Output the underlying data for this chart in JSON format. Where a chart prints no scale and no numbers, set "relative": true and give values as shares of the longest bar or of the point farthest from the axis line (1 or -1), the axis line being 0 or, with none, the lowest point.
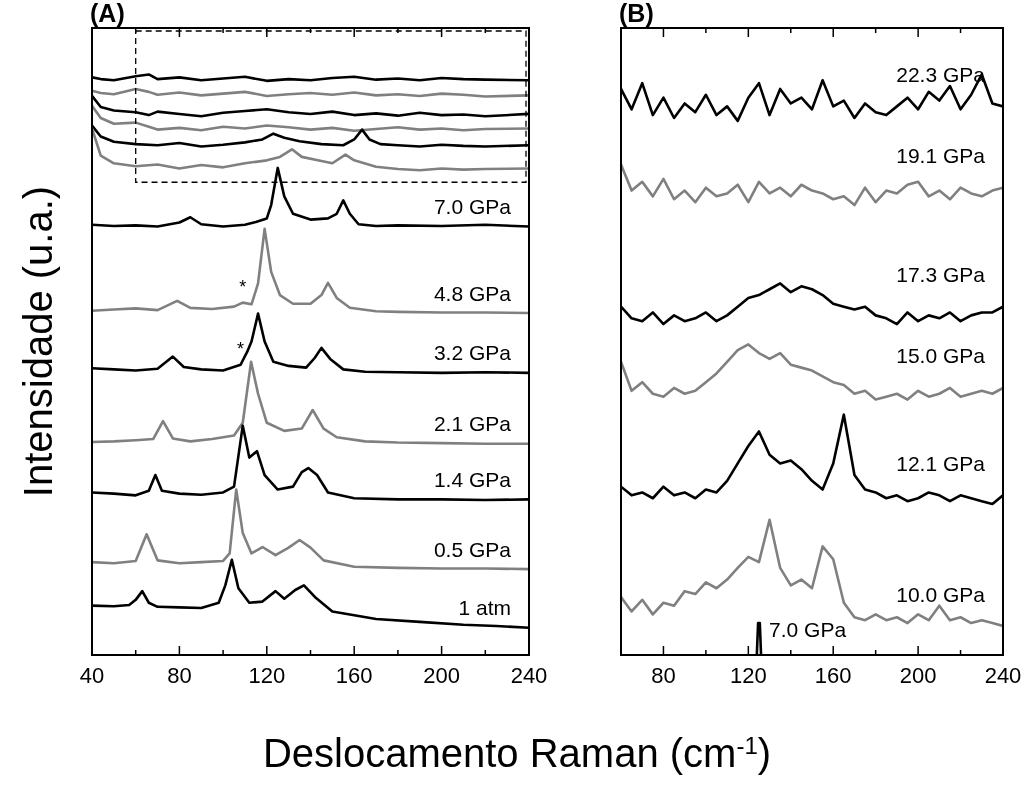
{
  "chart_data": [
    {
      "type": "line",
      "title": "(A)",
      "xlabel": "Deslocamento Raman   (cm$^{-1}$)",
      "ylabel": "Intensidade (u.a.)",
      "relative": true,
      "xlim": [
        40,
        240
      ],
      "xticks": [
        40,
        {
          "value": 60,
          "label": null
        },
        80,
        {
          "value": 100,
          "label": null
        },
        120,
        {
          "value": 140,
          "label": null
        },
        160,
        {
          "value": 180,
          "label": null
        },
        200,
        {
          "value": 220,
          "label": null
        },
        240
      ],
      "series": [
        {
          "color": "#000000",
          "x": [
            40,
            44,
            50,
            60,
            66,
            70,
            80,
            90,
            100,
            110,
            120,
            130,
            140,
            150,
            160,
            170,
            180,
            190,
            200,
            210,
            220,
            240
          ],
          "values": [
            0.995,
            0.992,
            0.99,
            0.997,
            1.0,
            0.992,
            0.995,
            0.99,
            0.993,
            0.996,
            0.989,
            0.992,
            0.99,
            0.994,
            0.996,
            0.991,
            0.993,
            0.99,
            0.994,
            0.992,
            0.991,
            0.99
          ]
        },
        {
          "color": "#808080",
          "x": [
            40,
            44,
            50,
            60,
            66,
            70,
            80,
            90,
            100,
            110,
            120,
            130,
            140,
            150,
            160,
            170,
            180,
            190,
            200,
            210,
            220,
            240
          ],
          "values": [
            0.972,
            0.968,
            0.966,
            0.975,
            0.97,
            0.965,
            0.969,
            0.964,
            0.967,
            0.97,
            0.963,
            0.966,
            0.968,
            0.965,
            0.969,
            0.964,
            0.966,
            0.963,
            0.967,
            0.965,
            0.962,
            0.964
          ]
        },
        {
          "color": "#000000",
          "x": [
            40,
            44,
            50,
            60,
            66,
            70,
            80,
            90,
            100,
            110,
            120,
            130,
            140,
            150,
            160,
            170,
            180,
            190,
            200,
            210,
            220,
            240
          ],
          "values": [
            0.963,
            0.944,
            0.938,
            0.935,
            0.93,
            0.936,
            0.932,
            0.928,
            0.934,
            0.937,
            0.94,
            0.935,
            0.932,
            0.936,
            0.93,
            0.933,
            0.929,
            0.934,
            0.93,
            0.931,
            0.928,
            0.932
          ]
        },
        {
          "color": "#808080",
          "x": [
            40,
            44,
            50,
            60,
            66,
            70,
            80,
            90,
            100,
            110,
            120,
            130,
            140,
            150,
            160,
            170,
            180,
            190,
            200,
            210,
            220,
            240
          ],
          "values": [
            0.946,
            0.925,
            0.915,
            0.917,
            0.91,
            0.905,
            0.908,
            0.904,
            0.91,
            0.907,
            0.912,
            0.909,
            0.905,
            0.908,
            0.903,
            0.906,
            0.909,
            0.905,
            0.907,
            0.904,
            0.906,
            0.907
          ]
        },
        {
          "color": "#000000",
          "x": [
            40,
            44,
            50,
            60,
            70,
            80,
            90,
            100,
            110,
            118,
            123,
            128,
            135,
            145,
            155,
            160,
            163.6,
            167,
            172,
            180,
            190,
            200,
            210,
            220,
            240
          ],
          "values": [
            0.912,
            0.893,
            0.884,
            0.88,
            0.878,
            0.882,
            0.876,
            0.879,
            0.883,
            0.888,
            0.898,
            0.891,
            0.885,
            0.88,
            0.878,
            0.888,
            0.905,
            0.888,
            0.88,
            0.878,
            0.876,
            0.879,
            0.877,
            0.876,
            0.878
          ]
        },
        {
          "color": "#808080",
          "x": [
            40,
            44,
            50,
            60,
            70,
            80,
            90,
            100,
            110,
            120,
            126,
            131.5,
            136,
            145,
            150,
            156,
            160,
            170,
            180,
            190,
            200,
            210,
            220,
            240
          ],
          "values": [
            0.907,
            0.86,
            0.847,
            0.842,
            0.845,
            0.838,
            0.844,
            0.84,
            0.847,
            0.852,
            0.858,
            0.871,
            0.858,
            0.851,
            0.847,
            0.862,
            0.852,
            0.841,
            0.837,
            0.835,
            0.838,
            0.836,
            0.837,
            0.838
          ]
        },
        {
          "name": "7.0 GPa",
          "color": "#000000",
          "x": [
            40,
            50,
            60,
            70,
            80,
            85,
            90,
            100,
            110,
            115,
            120,
            122,
            125,
            128,
            132,
            140,
            148,
            152,
            155,
            158,
            162,
            170,
            180,
            200,
            220,
            240
          ],
          "values": [
            0.741,
            0.739,
            0.74,
            0.738,
            0.745,
            0.754,
            0.742,
            0.738,
            0.741,
            0.746,
            0.752,
            0.775,
            0.839,
            0.79,
            0.76,
            0.75,
            0.752,
            0.76,
            0.783,
            0.76,
            0.742,
            0.739,
            0.74,
            0.739,
            0.741,
            0.738
          ]
        },
        {
          "name": "4.8 GPa",
          "color": "#808080",
          "x": [
            40,
            50,
            60,
            70,
            79,
            85,
            95,
            105,
            109,
            113,
            116,
            119,
            122,
            126,
            132,
            140,
            145,
            148,
            152,
            158,
            170,
            180,
            200,
            220,
            240
          ],
          "values": [
            0.593,
            0.595,
            0.597,
            0.594,
            0.61,
            0.598,
            0.596,
            0.6,
            0.607,
            0.604,
            0.64,
            0.734,
            0.66,
            0.62,
            0.605,
            0.605,
            0.62,
            0.641,
            0.615,
            0.598,
            0.592,
            0.591,
            0.59,
            0.59,
            0.589
          ]
        },
        {
          "name": "3.2 GPa",
          "color": "#000000",
          "x": [
            40,
            50,
            60,
            70,
            77,
            82,
            90,
            100,
            108,
            111,
            113,
            116,
            119,
            123,
            130,
            138,
            142,
            145,
            149,
            155,
            165,
            180,
            200,
            220,
            240
          ],
          "values": [
            0.494,
            0.492,
            0.49,
            0.493,
            0.514,
            0.496,
            0.492,
            0.49,
            0.5,
            0.522,
            0.54,
            0.588,
            0.54,
            0.505,
            0.498,
            0.495,
            0.512,
            0.529,
            0.51,
            0.492,
            0.488,
            0.487,
            0.486,
            0.487,
            0.486
          ]
        },
        {
          "name": "2.1 GPa",
          "color": "#808080",
          "x": [
            40,
            50,
            60,
            68,
            72.5,
            77,
            85,
            95,
            105,
            109,
            112.8,
            116,
            120,
            128,
            136,
            141,
            146,
            152,
            165,
            180,
            200,
            220,
            240
          ],
          "values": [
            0.367,
            0.368,
            0.37,
            0.372,
            0.403,
            0.373,
            0.368,
            0.372,
            0.378,
            0.4,
            0.505,
            0.45,
            0.4,
            0.386,
            0.39,
            0.422,
            0.39,
            0.375,
            0.368,
            0.366,
            0.365,
            0.364,
            0.364
          ]
        },
        {
          "name": "1.4 GPa",
          "color": "#000000",
          "x": [
            40,
            50,
            60,
            66,
            69,
            72,
            80,
            90,
            100,
            105,
            109,
            112,
            115.5,
            119,
            125,
            132,
            136,
            139,
            143,
            148,
            160,
            180,
            200,
            220,
            240
          ],
          "values": [
            0.28,
            0.278,
            0.275,
            0.283,
            0.31,
            0.283,
            0.278,
            0.276,
            0.28,
            0.29,
            0.395,
            0.34,
            0.351,
            0.31,
            0.285,
            0.29,
            0.315,
            0.322,
            0.31,
            0.28,
            0.27,
            0.268,
            0.268,
            0.267,
            0.268
          ]
        },
        {
          "name": "0.5 GPa",
          "color": "#808080",
          "x": [
            40,
            50,
            60,
            65,
            70,
            80,
            90,
            100,
            103,
            106,
            109,
            113,
            118,
            124,
            130,
            135,
            140,
            146,
            160,
            180,
            200,
            220,
            240
          ],
          "values": [
            0.16,
            0.158,
            0.162,
            0.208,
            0.163,
            0.158,
            0.16,
            0.162,
            0.175,
            0.285,
            0.21,
            0.175,
            0.186,
            0.172,
            0.185,
            0.198,
            0.185,
            0.163,
            0.152,
            0.15,
            0.149,
            0.149,
            0.148
          ]
        },
        {
          "name": "1 atm",
          "color": "#000000",
          "x": [
            40,
            50,
            57,
            60,
            63,
            66,
            70,
            80,
            90,
            98,
            101,
            104,
            107,
            112,
            118,
            124,
            128,
            133,
            137,
            142,
            150,
            170,
            190,
            210,
            225,
            240
          ],
          "values": [
            0.085,
            0.084,
            0.086,
            0.095,
            0.11,
            0.09,
            0.083,
            0.082,
            0.081,
            0.09,
            0.12,
            0.164,
            0.115,
            0.09,
            0.092,
            0.11,
            0.097,
            0.112,
            0.12,
            0.1,
            0.075,
            0.062,
            0.057,
            0.052,
            0.05,
            0.047
          ]
        }
      ],
      "annotations": [
        {
          "text": "*",
          "x": 109,
          "y": 0.607
        },
        {
          "text": "*",
          "x": 108,
          "y": 0.5
        }
      ]
    },
    {
      "type": "line",
      "title": "(B)",
      "relative": true,
      "xlim": [
        60,
        240
      ],
      "xticks": [
        80,
        {
          "value": 100,
          "label": null
        },
        120,
        {
          "value": 140,
          "label": null
        },
        160,
        {
          "value": 180,
          "label": null
        },
        200,
        {
          "value": 220,
          "label": null
        },
        240
      ],
      "x": [
        60,
        65,
        70,
        75,
        80,
        85,
        90,
        95,
        100,
        105,
        110,
        115,
        120,
        125,
        130,
        135,
        140,
        145,
        150,
        155,
        160,
        165,
        170,
        175,
        180,
        185,
        190,
        195,
        200,
        205,
        210,
        215,
        220,
        225,
        230,
        235,
        240
      ],
      "series": [
        {
          "name": "22.3 GPa",
          "color": "#000000",
          "values": [
            0.975,
            0.94,
            0.985,
            0.93,
            0.96,
            0.925,
            0.95,
            0.935,
            0.965,
            0.93,
            0.945,
            0.92,
            0.96,
            0.985,
            0.93,
            0.975,
            0.95,
            0.96,
            0.94,
            0.99,
            0.945,
            0.955,
            0.925,
            0.95,
            0.935,
            0.93,
            0.945,
            0.96,
            0.94,
            0.97,
            0.955,
            0.98,
            0.94,
            0.965,
            1.0,
            0.95,
            0.945
          ]
        },
        {
          "name": "19.1 GPa",
          "color": "#808080",
          "values": [
            0.845,
            0.8,
            0.815,
            0.79,
            0.82,
            0.785,
            0.8,
            0.78,
            0.805,
            0.79,
            0.795,
            0.81,
            0.78,
            0.815,
            0.795,
            0.805,
            0.79,
            0.81,
            0.8,
            0.795,
            0.785,
            0.79,
            0.775,
            0.805,
            0.78,
            0.8,
            0.795,
            0.81,
            0.815,
            0.79,
            0.8,
            0.785,
            0.805,
            0.795,
            0.79,
            0.8,
            0.805
          ]
        },
        {
          "name": "17.3 GPa",
          "color": "#000000",
          "values": [
            0.6,
            0.58,
            0.575,
            0.59,
            0.57,
            0.585,
            0.575,
            0.58,
            0.59,
            0.575,
            0.585,
            0.6,
            0.615,
            0.62,
            0.63,
            0.64,
            0.625,
            0.635,
            0.63,
            0.62,
            0.605,
            0.6,
            0.595,
            0.6,
            0.585,
            0.58,
            0.57,
            0.59,
            0.575,
            0.585,
            0.58,
            0.59,
            0.575,
            0.585,
            0.59,
            0.59,
            0.6
          ]
        },
        {
          "name": "15.0 GPa",
          "color": "#808080",
          "values": [
            0.505,
            0.455,
            0.47,
            0.45,
            0.445,
            0.46,
            0.45,
            0.455,
            0.47,
            0.485,
            0.505,
            0.525,
            0.535,
            0.52,
            0.51,
            0.52,
            0.5,
            0.495,
            0.49,
            0.48,
            0.47,
            0.465,
            0.45,
            0.455,
            0.44,
            0.445,
            0.45,
            0.44,
            0.455,
            0.445,
            0.45,
            0.46,
            0.445,
            0.45,
            0.455,
            0.45,
            0.46
          ]
        },
        {
          "name": "12.1 GPa",
          "color": "#000000",
          "values": [
            0.29,
            0.275,
            0.28,
            0.27,
            0.29,
            0.275,
            0.28,
            0.27,
            0.285,
            0.28,
            0.3,
            0.33,
            0.36,
            0.385,
            0.345,
            0.33,
            0.335,
            0.32,
            0.3,
            0.285,
            0.33,
            0.414,
            0.31,
            0.285,
            0.28,
            0.27,
            0.275,
            0.265,
            0.27,
            0.28,
            0.275,
            0.265,
            0.275,
            0.27,
            0.265,
            0.26,
            0.275
          ]
        },
        {
          "name": "10.0 GPa",
          "color": "#808080",
          "values": [
            0.1,
            0.075,
            0.095,
            0.07,
            0.09,
            0.085,
            0.11,
            0.105,
            0.125,
            0.115,
            0.13,
            0.15,
            0.169,
            0.16,
            0.233,
            0.15,
            0.12,
            0.13,
            0.115,
            0.187,
            0.165,
            0.09,
            0.065,
            0.06,
            0.07,
            0.06,
            0.065,
            0.055,
            0.07,
            0.06,
            0.085,
            0.06,
            0.065,
            0.055,
            0.06,
            0.055,
            0.05
          ]
        },
        {
          "name": "7.0 GPa",
          "color": "#000000",
          "x": [
            124,
            124.6,
            125.4,
            126
          ],
          "values": [
            0,
            0.055,
            0.055,
            0
          ]
        }
      ]
    }
  ]
}
